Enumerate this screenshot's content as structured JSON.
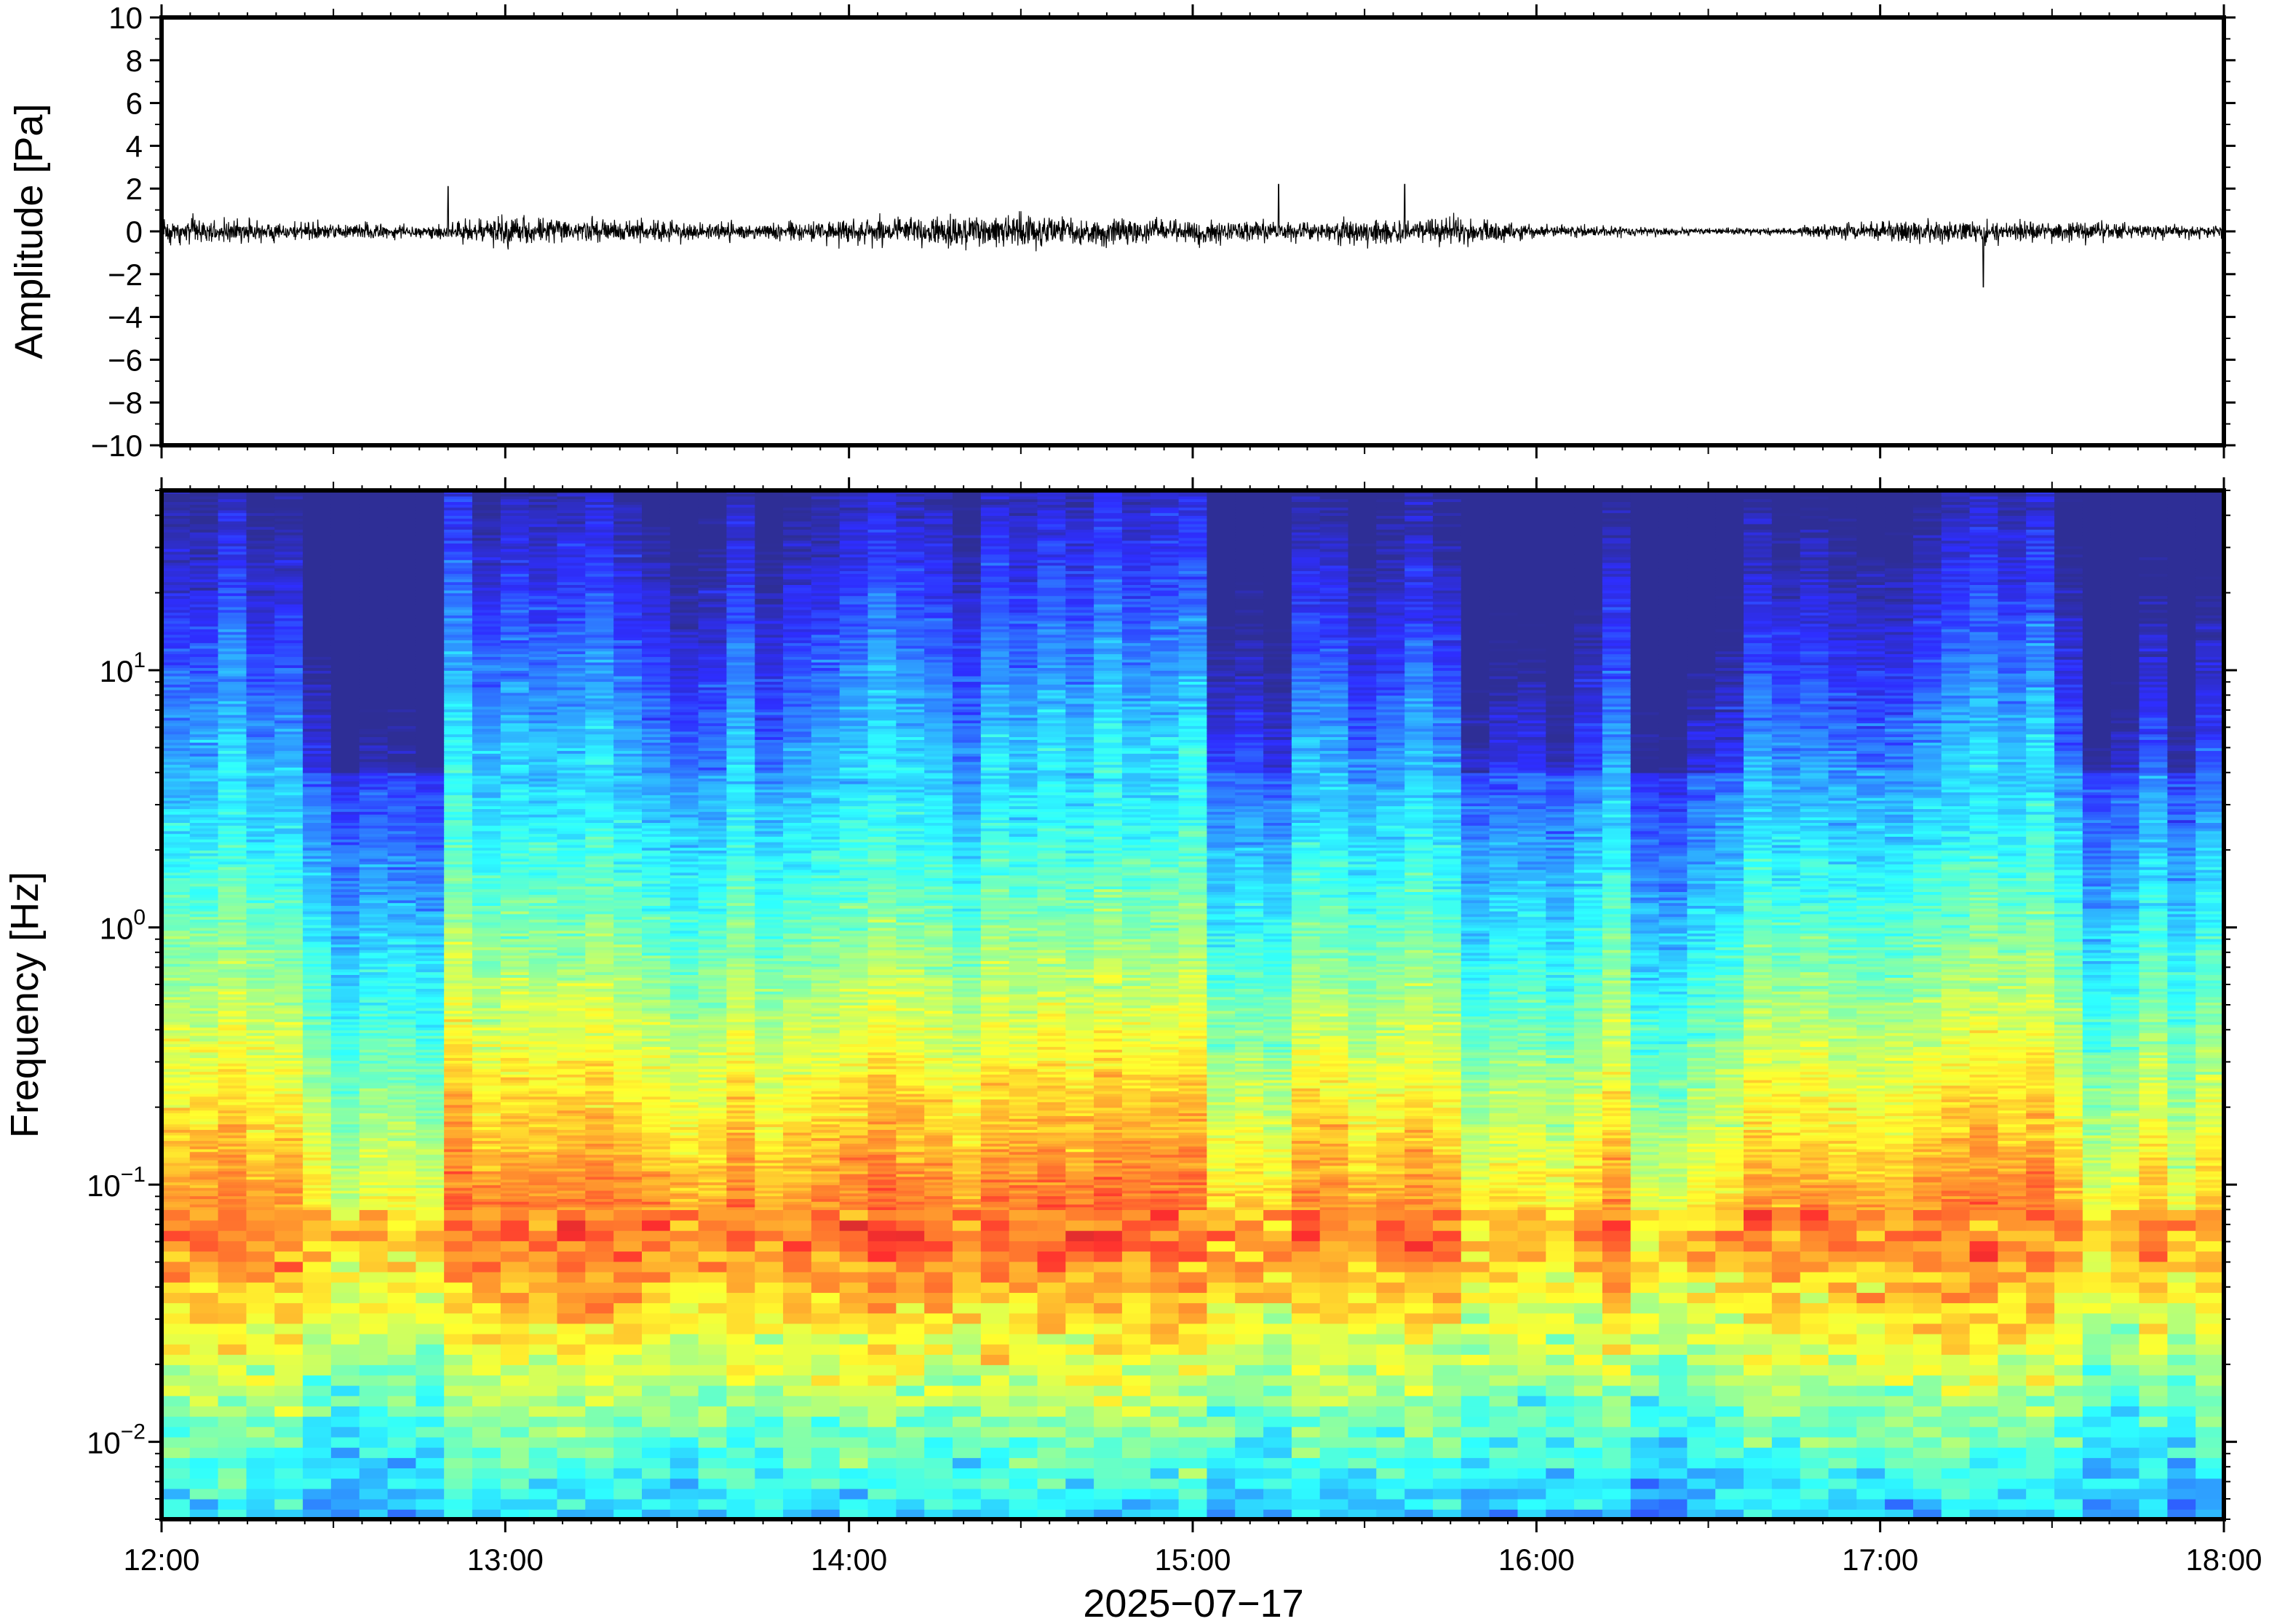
{
  "chart_data": [
    {
      "type": "line",
      "ylabel": "Amplitude [Pa]",
      "ylim": [
        -10,
        10
      ],
      "yticks": [
        10,
        8,
        6,
        4,
        2,
        0,
        -2,
        -4,
        -6,
        -8,
        -10
      ],
      "ytick_labels": [
        "10",
        "8",
        "6",
        "4",
        "2",
        "0",
        "−2",
        "−4",
        "−6",
        "−8",
        "−10"
      ],
      "xlim": [
        "2025-07-17T12:00",
        "2025-07-17T18:00"
      ],
      "grid": false,
      "series": [
        {
          "values_description_note": "",
          "x": [
            "12:00",
            "12:15",
            "12:30",
            "12:45",
            "13:00",
            "13:15",
            "13:30",
            "13:45",
            "14:00",
            "14:15",
            "14:30",
            "14:45",
            "15:00",
            "15:15",
            "15:30",
            "15:45",
            "16:00",
            "16:15",
            "16:30",
            "16:45",
            "17:00",
            "17:15",
            "17:30",
            "17:45",
            "18:00"
          ],
          "amplitude_envelope": [
            1.0,
            0.9,
            0.7,
            0.5,
            1.2,
            1.0,
            0.8,
            0.6,
            1.1,
            1.2,
            1.3,
            1.2,
            0.9,
            0.8,
            1.0,
            1.2,
            0.6,
            0.4,
            0.3,
            0.3,
            0.9,
            1.0,
            0.8,
            0.6,
            0.5
          ],
          "peaks": [
            {
              "x": "12:50",
              "y": 2.1
            },
            {
              "x": "15:15",
              "y": 2.2
            },
            {
              "x": "15:37",
              "y": 2.2
            },
            {
              "x": "17:18",
              "y": -2.6
            }
          ]
        }
      ]
    },
    {
      "type": "heatmap",
      "ylabel": "Frequency [Hz]",
      "xlabel": "2025−07−17",
      "y_scale": "log",
      "ylim": [
        0.005,
        50
      ],
      "yticks": [
        {
          "base": "10",
          "exp": "1"
        },
        {
          "base": "10",
          "exp": "0"
        },
        {
          "base": "10",
          "exp": "−1"
        },
        {
          "base": "10",
          "exp": "−2"
        }
      ],
      "ytick_values": [
        10,
        1,
        0.1,
        0.01
      ],
      "xticks": [
        "12:00",
        "13:00",
        "14:00",
        "15:00",
        "16:00",
        "17:00",
        "18:00"
      ],
      "xlim": [
        "2025-07-17T12:00",
        "2025-07-17T18:00"
      ],
      "colormap": "jet",
      "grid": false
    }
  ]
}
